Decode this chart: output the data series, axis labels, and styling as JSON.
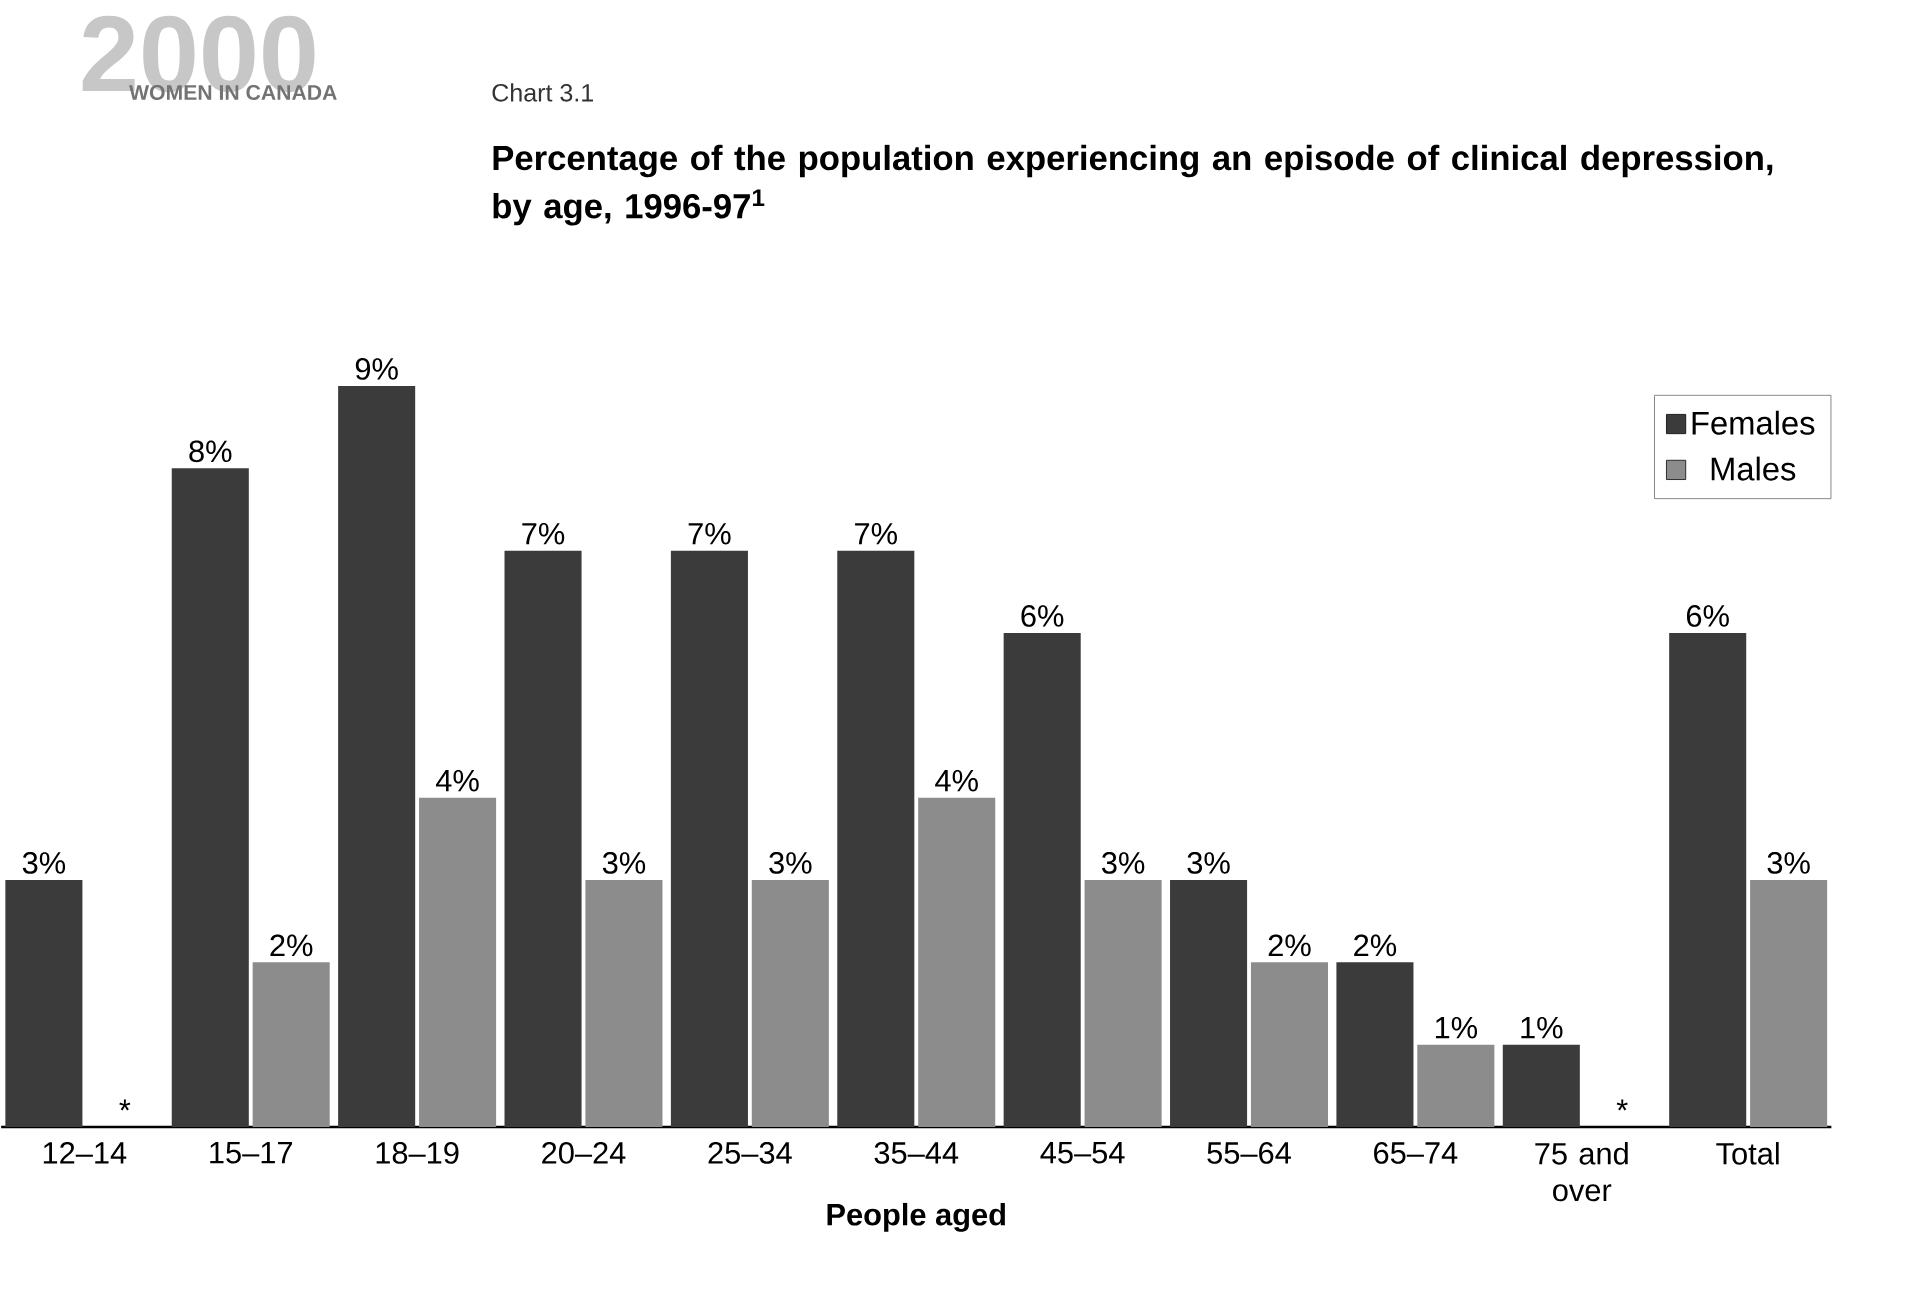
{
  "chart_data": {
    "type": "bar",
    "title": "Percentage of the population experiencing an episode of clinical depression, by age, 1996-97$^{1}$",
    "xlabel": "People aged",
    "annotations": [
      "WOMEN IN CANADA",
      "Chart 3.1",
      "2000"
    ],
    "categories": [
      "12–14",
      "15–17",
      "18–19",
      "20–24",
      "25–34",
      "35–44",
      "45–54",
      "55–64",
      "65–74",
      "75 and over",
      "Total"
    ],
    "series": [
      {
        "name": "Females",
        "color": "#3b3b3b",
        "values": [
          3,
          8,
          9,
          7,
          7,
          7,
          6,
          3,
          2,
          1,
          6
        ],
        "value_labels": [
          "3%",
          "8%",
          "9%",
          "7%",
          "7%",
          "7%",
          "6%",
          "3%",
          "2%",
          "1%",
          "6%"
        ]
      },
      {
        "name": "Males",
        "color": "#8c8c8c",
        "values": [
          null,
          2,
          4,
          3,
          3,
          4,
          3,
          2,
          1,
          null,
          3
        ],
        "value_labels": [
          "*",
          "2%",
          "4%",
          "3%",
          "3%",
          "4%",
          "3%",
          "2%",
          "1%",
          "*",
          "3%"
        ]
      }
    ],
    "legend": "top right"
  }
}
